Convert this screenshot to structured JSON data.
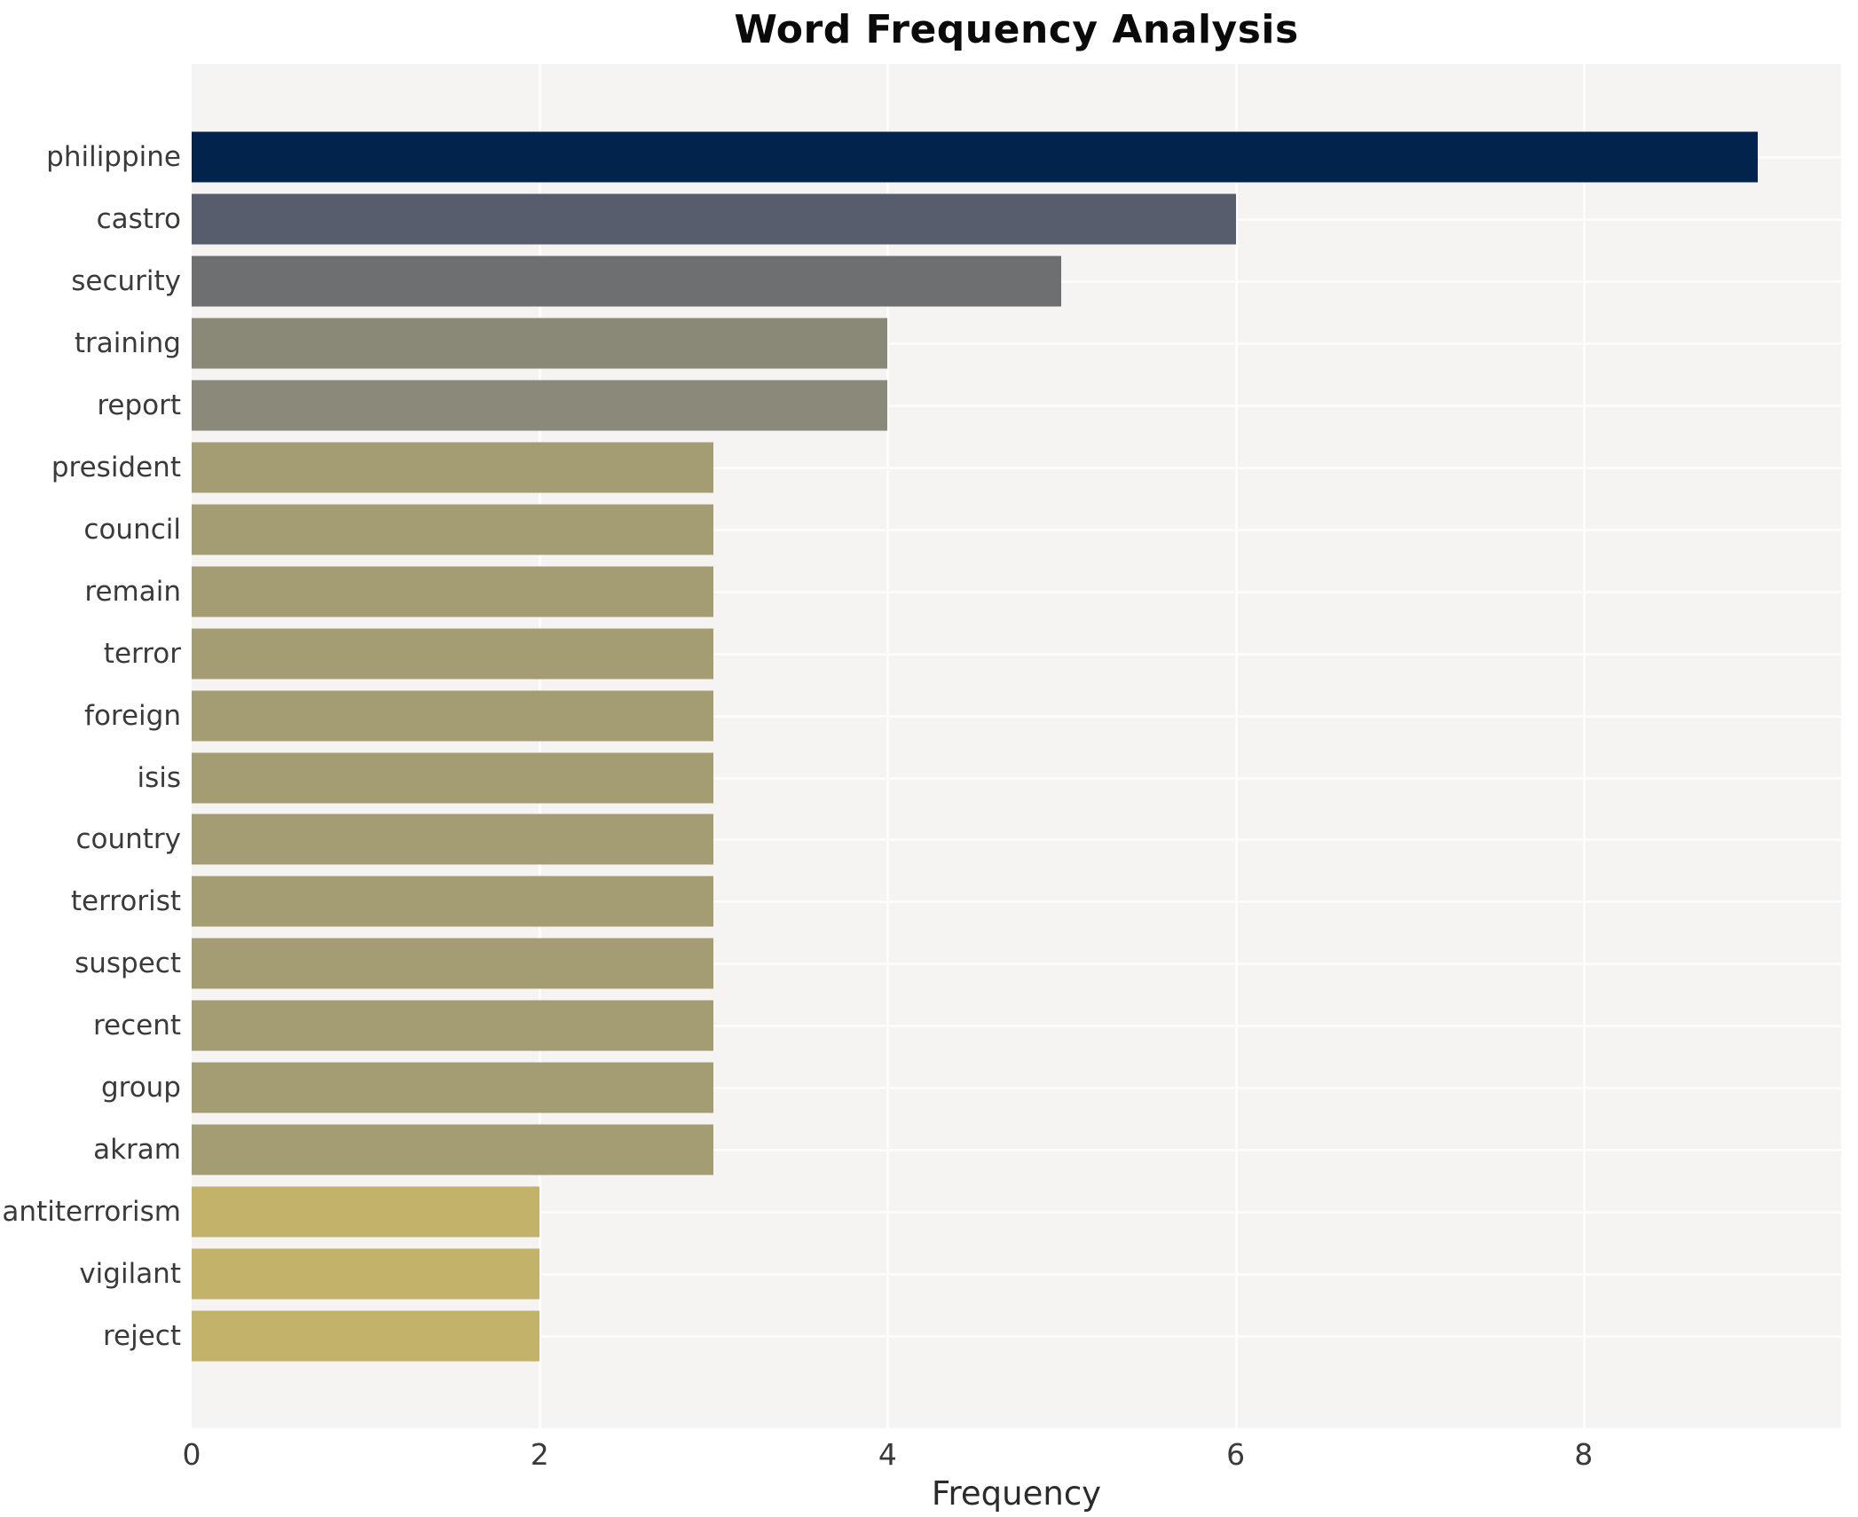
{
  "chart_data": {
    "type": "bar",
    "orientation": "horizontal",
    "title": "Word Frequency Analysis",
    "xlabel": "Frequency",
    "ylabel": "",
    "categories": [
      "philippine",
      "castro",
      "security",
      "training",
      "report",
      "president",
      "council",
      "remain",
      "terror",
      "foreign",
      "isis",
      "country",
      "terrorist",
      "suspect",
      "recent",
      "group",
      "akram",
      "antiterrorism",
      "vigilant",
      "reject"
    ],
    "values": [
      9,
      6,
      5,
      4,
      4,
      3,
      3,
      3,
      3,
      3,
      3,
      3,
      3,
      3,
      3,
      3,
      3,
      2,
      2,
      2
    ],
    "bar_colors": [
      "#02234c",
      "#565d6d",
      "#6e6f71",
      "#8a8877",
      "#8b8979",
      "#a49c73",
      "#a49c73",
      "#a49c73",
      "#a49c73",
      "#a49c73",
      "#a49c73",
      "#a49c73",
      "#a49c73",
      "#a49c73",
      "#a49c73",
      "#a49c73",
      "#a49c73",
      "#c3b269",
      "#c3b269",
      "#c3b269"
    ],
    "xticks": [
      0,
      2,
      4,
      6,
      8
    ],
    "xlim": [
      0,
      9.48
    ],
    "grid": true,
    "legend_position": "none",
    "plot_background": "#f5f4f3",
    "grid_color": "#fcfcfc"
  }
}
